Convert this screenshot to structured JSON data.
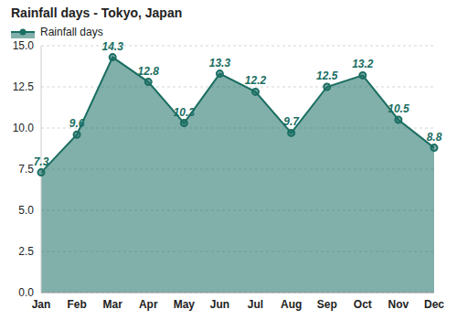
{
  "chart_data": {
    "type": "area",
    "title": "Rainfall days - Tokyo, Japan",
    "categories": [
      "Jan",
      "Feb",
      "Mar",
      "Apr",
      "May",
      "Jun",
      "Jul",
      "Aug",
      "Sep",
      "Oct",
      "Nov",
      "Dec"
    ],
    "series": [
      {
        "name": "Rainfall days",
        "color": "#1a6e62",
        "values": [
          7.3,
          9.6,
          14.3,
          12.8,
          10.3,
          13.3,
          12.2,
          9.7,
          12.5,
          13.2,
          10.5,
          8.8
        ]
      }
    ],
    "ylim": [
      0,
      15
    ],
    "yticks": [
      {
        "value": 0,
        "label": "0.0"
      },
      2.5,
      {
        "value": 5,
        "label": "5.0"
      },
      7.5,
      {
        "value": 10,
        "label": "10.0"
      },
      12.5,
      {
        "value": 15,
        "label": "15.0"
      }
    ],
    "grid": true,
    "legend": "top-left",
    "marker": "circle",
    "data_labels": true
  }
}
